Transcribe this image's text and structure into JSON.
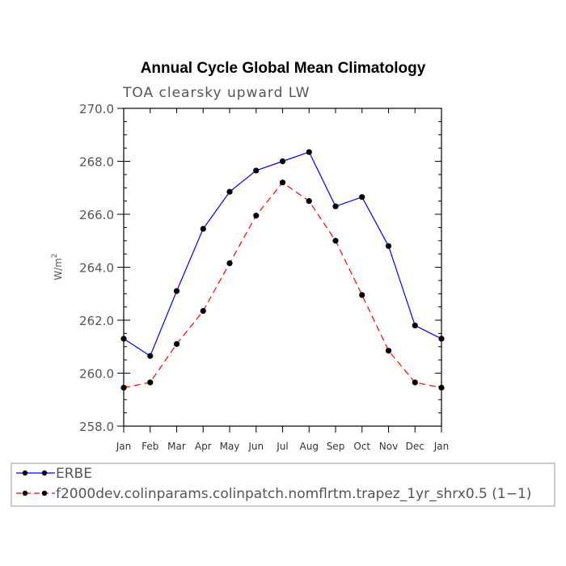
{
  "chart_data": {
    "type": "line",
    "title": "Annual Cycle Global Mean Climatology",
    "subtitle": "TOA clearsky upward LW",
    "ylabel": "W/m",
    "ylabel_sup": "2",
    "xlabel": "",
    "ylim": [
      258.0,
      270.0
    ],
    "yticks": [
      "258.0",
      "260.0",
      "262.0",
      "264.0",
      "266.0",
      "268.0",
      "270.0"
    ],
    "categories": [
      "Jan",
      "Feb",
      "Mar",
      "Apr",
      "May",
      "Jun",
      "Jul",
      "Aug",
      "Sep",
      "Oct",
      "Nov",
      "Dec",
      "Jan"
    ],
    "series": [
      {
        "name": "ERBE",
        "color": "#0000ff",
        "dash": "solid",
        "values": [
          261.3,
          260.65,
          263.1,
          265.45,
          266.85,
          267.65,
          268.0,
          268.35,
          266.3,
          266.65,
          264.8,
          261.8,
          261.3
        ]
      },
      {
        "name": "f2000dev.colinparams.colinpatch.nomflrtm.trapez_1yr_shrx0.5 (1−1)",
        "color": "#ff0000",
        "dash": "dashed",
        "values": [
          259.45,
          259.65,
          261.1,
          262.35,
          264.15,
          265.95,
          267.2,
          266.5,
          265.0,
          262.95,
          260.85,
          259.65,
          259.45
        ]
      }
    ]
  }
}
